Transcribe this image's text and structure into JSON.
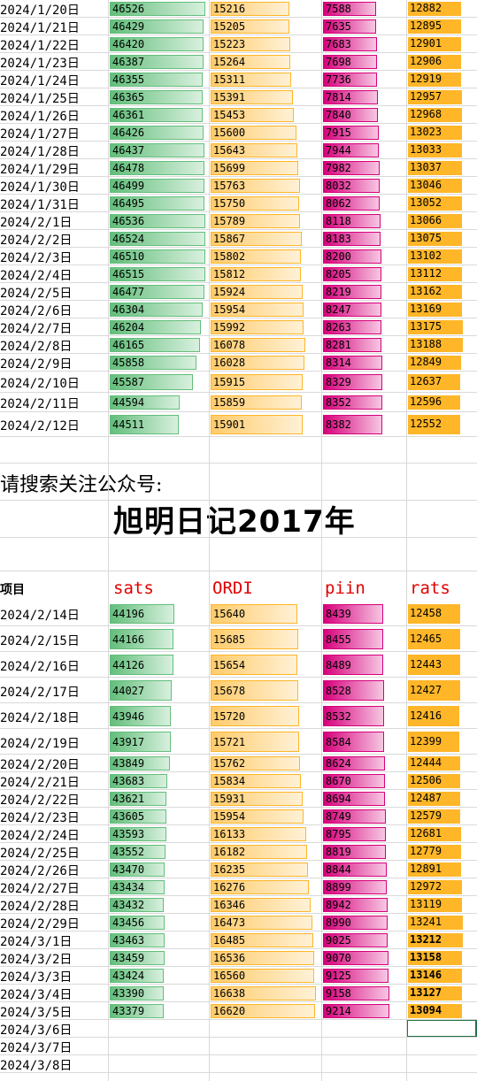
{
  "sheet": {
    "prompt": "请搜索关注公众号:",
    "brand": "旭明日记2017年",
    "header": {
      "item": "项目",
      "sats": "sats",
      "ordi": "ORDI",
      "piin": "piin",
      "rats": "rats"
    }
  },
  "colors": {
    "sats": "#63be7b",
    "ordi": "#ffb628",
    "piin": "#d6007b",
    "rats": "#ffb628",
    "header_red": "#e00000"
  },
  "top_rows": [
    {
      "date": "2024/1/20日",
      "sats": "46526",
      "ordi": "15216",
      "piin": "7588",
      "rats": "12882"
    },
    {
      "date": "2024/1/21日",
      "sats": "46429",
      "ordi": "15205",
      "piin": "7635",
      "rats": "12895"
    },
    {
      "date": "2024/1/22日",
      "sats": "46420",
      "ordi": "15223",
      "piin": "7683",
      "rats": "12901"
    },
    {
      "date": "2024/1/23日",
      "sats": "46387",
      "ordi": "15264",
      "piin": "7698",
      "rats": "12906"
    },
    {
      "date": "2024/1/24日",
      "sats": "46355",
      "ordi": "15311",
      "piin": "7736",
      "rats": "12919"
    },
    {
      "date": "2024/1/25日",
      "sats": "46365",
      "ordi": "15391",
      "piin": "7814",
      "rats": "12957"
    },
    {
      "date": "2024/1/26日",
      "sats": "46361",
      "ordi": "15453",
      "piin": "7840",
      "rats": "12968"
    },
    {
      "date": "2024/1/27日",
      "sats": "46426",
      "ordi": "15600",
      "piin": "7915",
      "rats": "13023"
    },
    {
      "date": "2024/1/28日",
      "sats": "46437",
      "ordi": "15643",
      "piin": "7944",
      "rats": "13033"
    },
    {
      "date": "2024/1/29日",
      "sats": "46478",
      "ordi": "15699",
      "piin": "7982",
      "rats": "13037"
    },
    {
      "date": "2024/1/30日",
      "sats": "46499",
      "ordi": "15763",
      "piin": "8032",
      "rats": "13046"
    },
    {
      "date": "2024/1/31日",
      "sats": "46495",
      "ordi": "15750",
      "piin": "8062",
      "rats": "13052"
    },
    {
      "date": "2024/2/1日",
      "sats": "46536",
      "ordi": "15789",
      "piin": "8118",
      "rats": "13066"
    },
    {
      "date": "2024/2/2日",
      "sats": "46524",
      "ordi": "15867",
      "piin": "8183",
      "rats": "13075"
    },
    {
      "date": "2024/2/3日",
      "sats": "46510",
      "ordi": "15802",
      "piin": "8200",
      "rats": "13102"
    },
    {
      "date": "2024/2/4日",
      "sats": "46515",
      "ordi": "15812",
      "piin": "8205",
      "rats": "13112"
    },
    {
      "date": "2024/2/5日",
      "sats": "46477",
      "ordi": "15924",
      "piin": "8219",
      "rats": "13162"
    },
    {
      "date": "2024/2/6日",
      "sats": "46304",
      "ordi": "15954",
      "piin": "8247",
      "rats": "13169"
    },
    {
      "date": "2024/2/7日",
      "sats": "46204",
      "ordi": "15992",
      "piin": "8263",
      "rats": "13175"
    },
    {
      "date": "2024/2/8日",
      "sats": "46165",
      "ordi": "16078",
      "piin": "8281",
      "rats": "13188"
    },
    {
      "date": "2024/2/9日",
      "sats": "45858",
      "ordi": "16028",
      "piin": "8314",
      "rats": "12849"
    },
    {
      "date": "2024/2/10日",
      "sats": "45587",
      "ordi": "15915",
      "piin": "8329",
      "rats": "12637"
    },
    {
      "date": "2024/2/11日",
      "sats": "44594",
      "ordi": "15859",
      "piin": "8352",
      "rats": "12596"
    },
    {
      "date": "2024/2/12日",
      "sats": "44511",
      "ordi": "15901",
      "piin": "8382",
      "rats": "12552"
    }
  ],
  "bottom_rows": [
    {
      "date": "2024/2/14日",
      "sats": "44196",
      "ordi": "15640",
      "piin": "8439",
      "rats": "12458"
    },
    {
      "date": "2024/2/15日",
      "sats": "44166",
      "ordi": "15685",
      "piin": "8455",
      "rats": "12465"
    },
    {
      "date": "2024/2/16日",
      "sats": "44126",
      "ordi": "15654",
      "piin": "8489",
      "rats": "12443"
    },
    {
      "date": "2024/2/17日",
      "sats": "44027",
      "ordi": "15678",
      "piin": "8528",
      "rats": "12427"
    },
    {
      "date": "2024/2/18日",
      "sats": "43946",
      "ordi": "15720",
      "piin": "8532",
      "rats": "12416"
    },
    {
      "date": "2024/2/19日",
      "sats": "43917",
      "ordi": "15721",
      "piin": "8584",
      "rats": "12399"
    },
    {
      "date": "2024/2/20日",
      "sats": "43849",
      "ordi": "15762",
      "piin": "8624",
      "rats": "12444"
    },
    {
      "date": "2024/2/21日",
      "sats": "43683",
      "ordi": "15834",
      "piin": "8670",
      "rats": "12506"
    },
    {
      "date": "2024/2/22日",
      "sats": "43621",
      "ordi": "15931",
      "piin": "8694",
      "rats": "12487"
    },
    {
      "date": "2024/2/23日",
      "sats": "43605",
      "ordi": "15954",
      "piin": "8749",
      "rats": "12579"
    },
    {
      "date": "2024/2/24日",
      "sats": "43593",
      "ordi": "16133",
      "piin": "8795",
      "rats": "12681"
    },
    {
      "date": "2024/2/25日",
      "sats": "43552",
      "ordi": "16182",
      "piin": "8819",
      "rats": "12779"
    },
    {
      "date": "2024/2/26日",
      "sats": "43470",
      "ordi": "16235",
      "piin": "8844",
      "rats": "12891"
    },
    {
      "date": "2024/2/27日",
      "sats": "43434",
      "ordi": "16276",
      "piin": "8899",
      "rats": "12972"
    },
    {
      "date": "2024/2/28日",
      "sats": "43432",
      "ordi": "16346",
      "piin": "8942",
      "rats": "13119"
    },
    {
      "date": "2024/2/29日",
      "sats": "43456",
      "ordi": "16473",
      "piin": "8990",
      "rats": "13241"
    },
    {
      "date": "2024/3/1日",
      "sats": "43463",
      "ordi": "16485",
      "piin": "9025",
      "rats": "13212"
    },
    {
      "date": "2024/3/2日",
      "sats": "43459",
      "ordi": "16536",
      "piin": "9070",
      "rats": "13158"
    },
    {
      "date": "2024/3/3日",
      "sats": "43424",
      "ordi": "16560",
      "piin": "9125",
      "rats": "13146"
    },
    {
      "date": "2024/3/4日",
      "sats": "43390",
      "ordi": "16638",
      "piin": "9158",
      "rats": "13127"
    },
    {
      "date": "2024/3/5日",
      "sats": "43379",
      "ordi": "16620",
      "piin": "9214",
      "rats": "13094"
    }
  ],
  "empty_dates": [
    "2024/3/6日",
    "2024/3/7日",
    "2024/3/8日"
  ]
}
